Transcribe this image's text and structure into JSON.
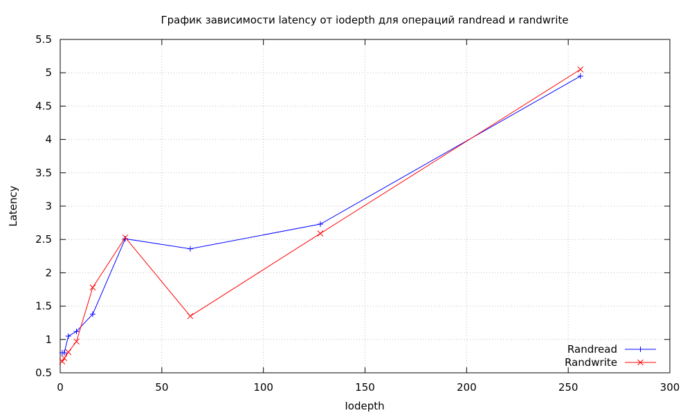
{
  "chart_data": {
    "type": "line",
    "title": "График зависимости latency от iodepth для операций randread и randwrite",
    "xlabel": "Iodepth",
    "ylabel": "Latency",
    "xlim": [
      0,
      300
    ],
    "ylim": [
      0.5,
      5.5
    ],
    "xticks": [
      0,
      50,
      100,
      150,
      200,
      250,
      300
    ],
    "yticks": [
      0.5,
      1,
      1.5,
      2,
      2.5,
      3,
      3.5,
      4,
      4.5,
      5,
      5.5
    ],
    "xtick_labels": [
      "0",
      "50",
      "100",
      "150",
      "200",
      "250",
      "300"
    ],
    "ytick_labels": [
      "0.5",
      "1",
      "1.5",
      "2",
      "2.5",
      "3",
      "3.5",
      "4",
      "4.5",
      "5",
      "5.5"
    ],
    "grid": true,
    "legend_position": "bottom-right",
    "series": [
      {
        "name": "Randread",
        "color": "#0000ff",
        "marker": "plus",
        "x": [
          1,
          2,
          4,
          8,
          16,
          32,
          64,
          128,
          256
        ],
        "y": [
          0.8,
          0.8,
          1.05,
          1.12,
          1.38,
          2.51,
          2.36,
          2.73,
          4.95
        ]
      },
      {
        "name": "Randwrite",
        "color": "#ff0000",
        "marker": "cross",
        "x": [
          1,
          2,
          4,
          8,
          16,
          32,
          64,
          128,
          256
        ],
        "y": [
          0.67,
          0.72,
          0.81,
          0.97,
          1.78,
          2.53,
          1.35,
          2.59,
          5.05
        ]
      }
    ]
  }
}
